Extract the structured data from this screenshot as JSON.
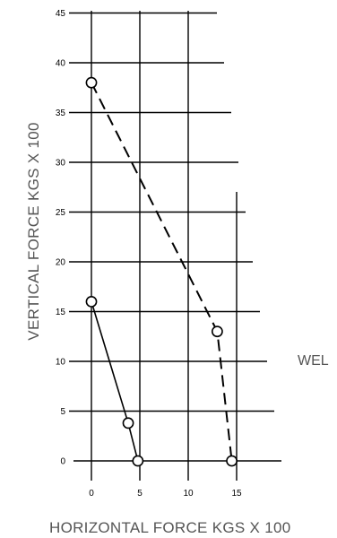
{
  "chart_data": {
    "type": "line",
    "xlabel": "HORIZONTAL FORCE KGS X 100",
    "ylabel": "VERTICAL FORCE KGS X 100",
    "annotation": "WEL",
    "x_ticks": [
      0,
      5,
      10,
      15
    ],
    "y_ticks": [
      0,
      5,
      10,
      15,
      20,
      25,
      30,
      35,
      40,
      45
    ],
    "xlim": [
      0,
      15
    ],
    "ylim": [
      0,
      45
    ],
    "grid": true,
    "legend": "none",
    "series": [
      {
        "style": "solid",
        "x": [
          0,
          3.8,
          4.8
        ],
        "y": [
          16,
          3.8,
          0
        ]
      },
      {
        "style": "dashed",
        "x": [
          0,
          13,
          14.5
        ],
        "y": [
          38,
          13,
          0
        ]
      }
    ]
  }
}
